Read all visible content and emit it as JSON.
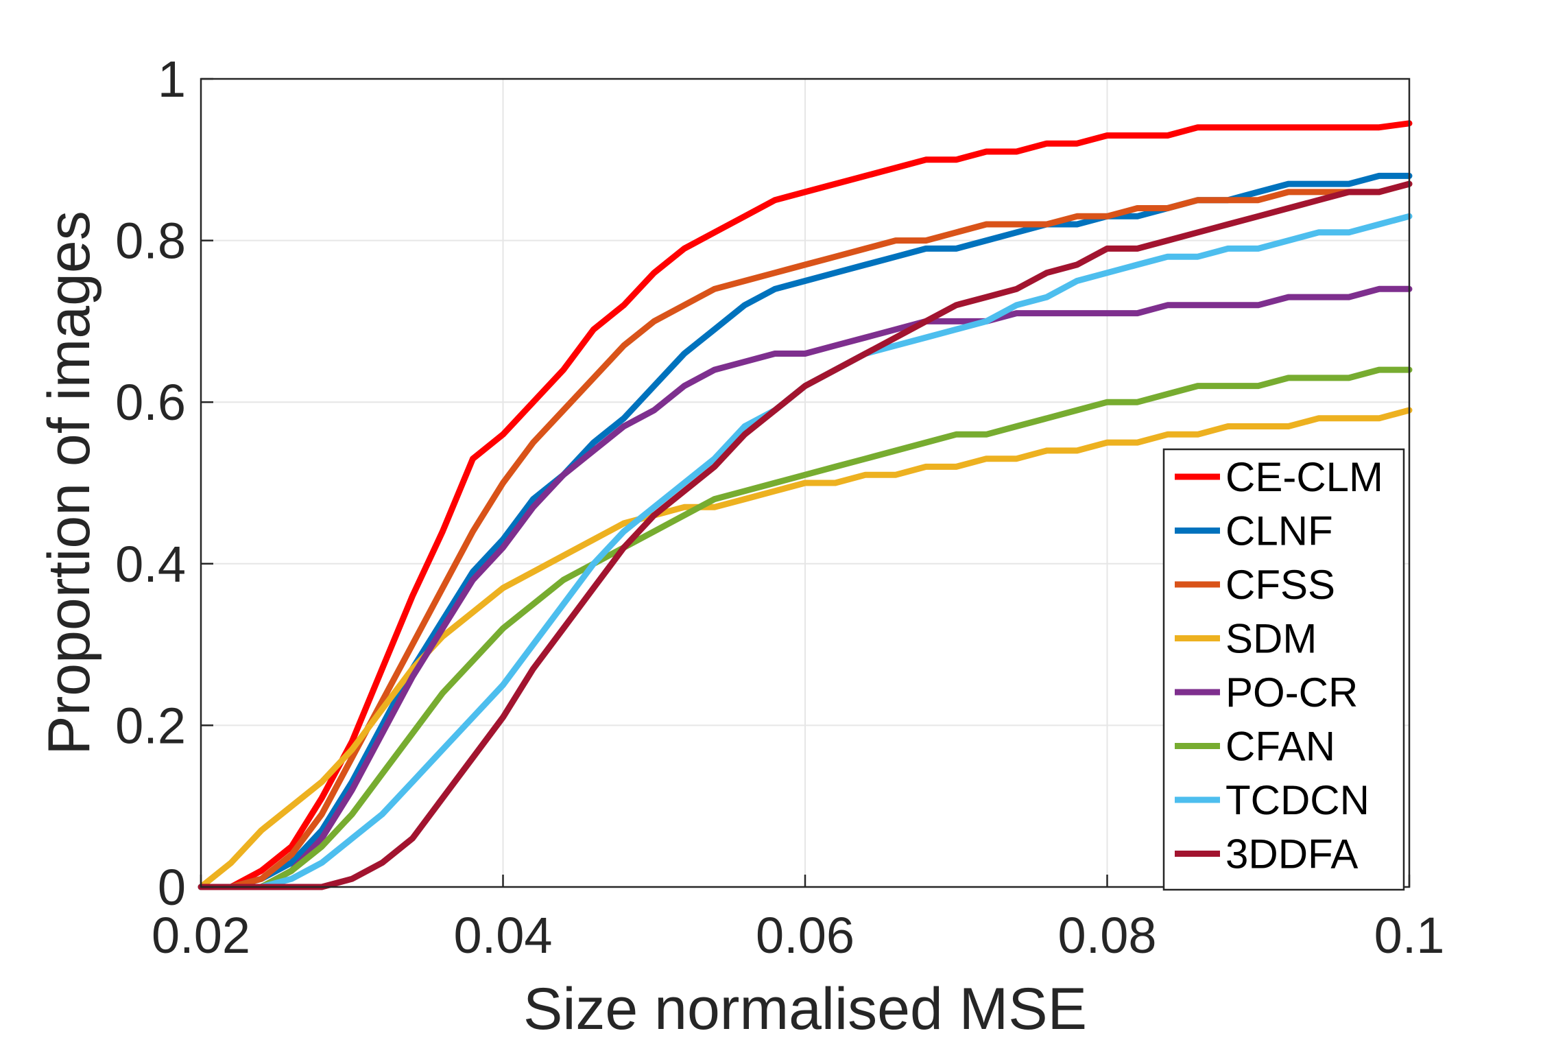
{
  "chart_data": {
    "type": "line",
    "xlabel": "Size normalised MSE",
    "ylabel": "Proportion of images",
    "xlim": [
      0.02,
      0.1
    ],
    "ylim": [
      0,
      1
    ],
    "xticks": [
      0.02,
      0.04,
      0.06,
      0.08,
      0.1
    ],
    "xtick_labels": [
      "0.02",
      "0.04",
      "0.06",
      "0.08",
      "0.1"
    ],
    "yticks": [
      0,
      0.2,
      0.4,
      0.6,
      0.8,
      1
    ],
    "ytick_labels": [
      "0",
      "0.2",
      "0.4",
      "0.6",
      "0.8",
      "1"
    ],
    "grid": true,
    "legend_position": "bottom-right",
    "x": [
      0.02,
      0.022,
      0.024,
      0.026,
      0.028,
      0.03,
      0.032,
      0.034,
      0.036,
      0.038,
      0.04,
      0.042,
      0.044,
      0.046,
      0.048,
      0.05,
      0.052,
      0.054,
      0.056,
      0.058,
      0.06,
      0.062,
      0.064,
      0.066,
      0.068,
      0.07,
      0.072,
      0.074,
      0.076,
      0.078,
      0.08,
      0.082,
      0.084,
      0.086,
      0.088,
      0.09,
      0.092,
      0.094,
      0.096,
      0.098,
      0.1
    ],
    "series": [
      {
        "name": "CE-CLM",
        "color": "#FF0000",
        "values": [
          0.0,
          0.0,
          0.02,
          0.05,
          0.11,
          0.18,
          0.27,
          0.36,
          0.44,
          0.53,
          0.56,
          0.6,
          0.64,
          0.69,
          0.72,
          0.76,
          0.79,
          0.81,
          0.83,
          0.85,
          0.86,
          0.87,
          0.88,
          0.89,
          0.9,
          0.9,
          0.91,
          0.91,
          0.92,
          0.92,
          0.93,
          0.93,
          0.93,
          0.94,
          0.94,
          0.94,
          0.94,
          0.94,
          0.94,
          0.94,
          0.945
        ]
      },
      {
        "name": "CLNF",
        "color": "#0072BD",
        "values": [
          0.0,
          0.0,
          0.01,
          0.03,
          0.07,
          0.13,
          0.2,
          0.27,
          0.33,
          0.39,
          0.43,
          0.48,
          0.51,
          0.55,
          0.58,
          0.62,
          0.66,
          0.69,
          0.72,
          0.74,
          0.75,
          0.76,
          0.77,
          0.78,
          0.79,
          0.79,
          0.8,
          0.81,
          0.82,
          0.82,
          0.83,
          0.83,
          0.84,
          0.85,
          0.85,
          0.86,
          0.87,
          0.87,
          0.87,
          0.88,
          0.88
        ]
      },
      {
        "name": "CFSS",
        "color": "#D95319",
        "values": [
          0.0,
          0.0,
          0.01,
          0.04,
          0.09,
          0.16,
          0.23,
          0.3,
          0.37,
          0.44,
          0.5,
          0.55,
          0.59,
          0.63,
          0.67,
          0.7,
          0.72,
          0.74,
          0.75,
          0.76,
          0.77,
          0.78,
          0.79,
          0.8,
          0.8,
          0.81,
          0.82,
          0.82,
          0.82,
          0.83,
          0.83,
          0.84,
          0.84,
          0.85,
          0.85,
          0.85,
          0.86,
          0.86,
          0.86,
          0.86,
          0.87
        ]
      },
      {
        "name": "SDM",
        "color": "#EDB120",
        "values": [
          0.0,
          0.03,
          0.07,
          0.1,
          0.13,
          0.17,
          0.22,
          0.27,
          0.31,
          0.34,
          0.37,
          0.39,
          0.41,
          0.43,
          0.45,
          0.46,
          0.47,
          0.47,
          0.48,
          0.49,
          0.5,
          0.5,
          0.51,
          0.51,
          0.52,
          0.52,
          0.53,
          0.53,
          0.54,
          0.54,
          0.55,
          0.55,
          0.56,
          0.56,
          0.57,
          0.57,
          0.57,
          0.58,
          0.58,
          0.58,
          0.59
        ]
      },
      {
        "name": "PO-CR",
        "color": "#7E2F8E",
        "values": [
          0.0,
          0.0,
          0.0,
          0.02,
          0.06,
          0.12,
          0.19,
          0.26,
          0.32,
          0.38,
          0.42,
          0.47,
          0.51,
          0.54,
          0.57,
          0.59,
          0.62,
          0.64,
          0.65,
          0.66,
          0.66,
          0.67,
          0.68,
          0.69,
          0.7,
          0.7,
          0.7,
          0.71,
          0.71,
          0.71,
          0.71,
          0.71,
          0.72,
          0.72,
          0.72,
          0.72,
          0.73,
          0.73,
          0.73,
          0.74,
          0.74
        ]
      },
      {
        "name": "CFAN",
        "color": "#77AC30",
        "values": [
          0.0,
          0.0,
          0.0,
          0.02,
          0.05,
          0.09,
          0.14,
          0.19,
          0.24,
          0.28,
          0.32,
          0.35,
          0.38,
          0.4,
          0.42,
          0.44,
          0.46,
          0.48,
          0.49,
          0.5,
          0.51,
          0.52,
          0.53,
          0.54,
          0.55,
          0.56,
          0.56,
          0.57,
          0.58,
          0.59,
          0.6,
          0.6,
          0.61,
          0.62,
          0.62,
          0.62,
          0.63,
          0.63,
          0.63,
          0.64,
          0.64
        ]
      },
      {
        "name": "TCDCN",
        "color": "#4DBEEE",
        "values": [
          0.0,
          0.0,
          0.0,
          0.01,
          0.03,
          0.06,
          0.09,
          0.13,
          0.17,
          0.21,
          0.25,
          0.3,
          0.35,
          0.4,
          0.44,
          0.47,
          0.5,
          0.53,
          0.57,
          0.59,
          0.62,
          0.64,
          0.66,
          0.67,
          0.68,
          0.69,
          0.7,
          0.72,
          0.73,
          0.75,
          0.76,
          0.77,
          0.78,
          0.78,
          0.79,
          0.79,
          0.8,
          0.81,
          0.81,
          0.82,
          0.83
        ]
      },
      {
        "name": "3DDFA",
        "color": "#A2142F",
        "values": [
          0.0,
          0.0,
          0.0,
          0.0,
          0.0,
          0.01,
          0.03,
          0.06,
          0.11,
          0.16,
          0.21,
          0.27,
          0.32,
          0.37,
          0.42,
          0.46,
          0.49,
          0.52,
          0.56,
          0.59,
          0.62,
          0.64,
          0.66,
          0.68,
          0.7,
          0.72,
          0.73,
          0.74,
          0.76,
          0.77,
          0.79,
          0.79,
          0.8,
          0.81,
          0.82,
          0.83,
          0.84,
          0.85,
          0.86,
          0.86,
          0.87
        ]
      }
    ]
  }
}
